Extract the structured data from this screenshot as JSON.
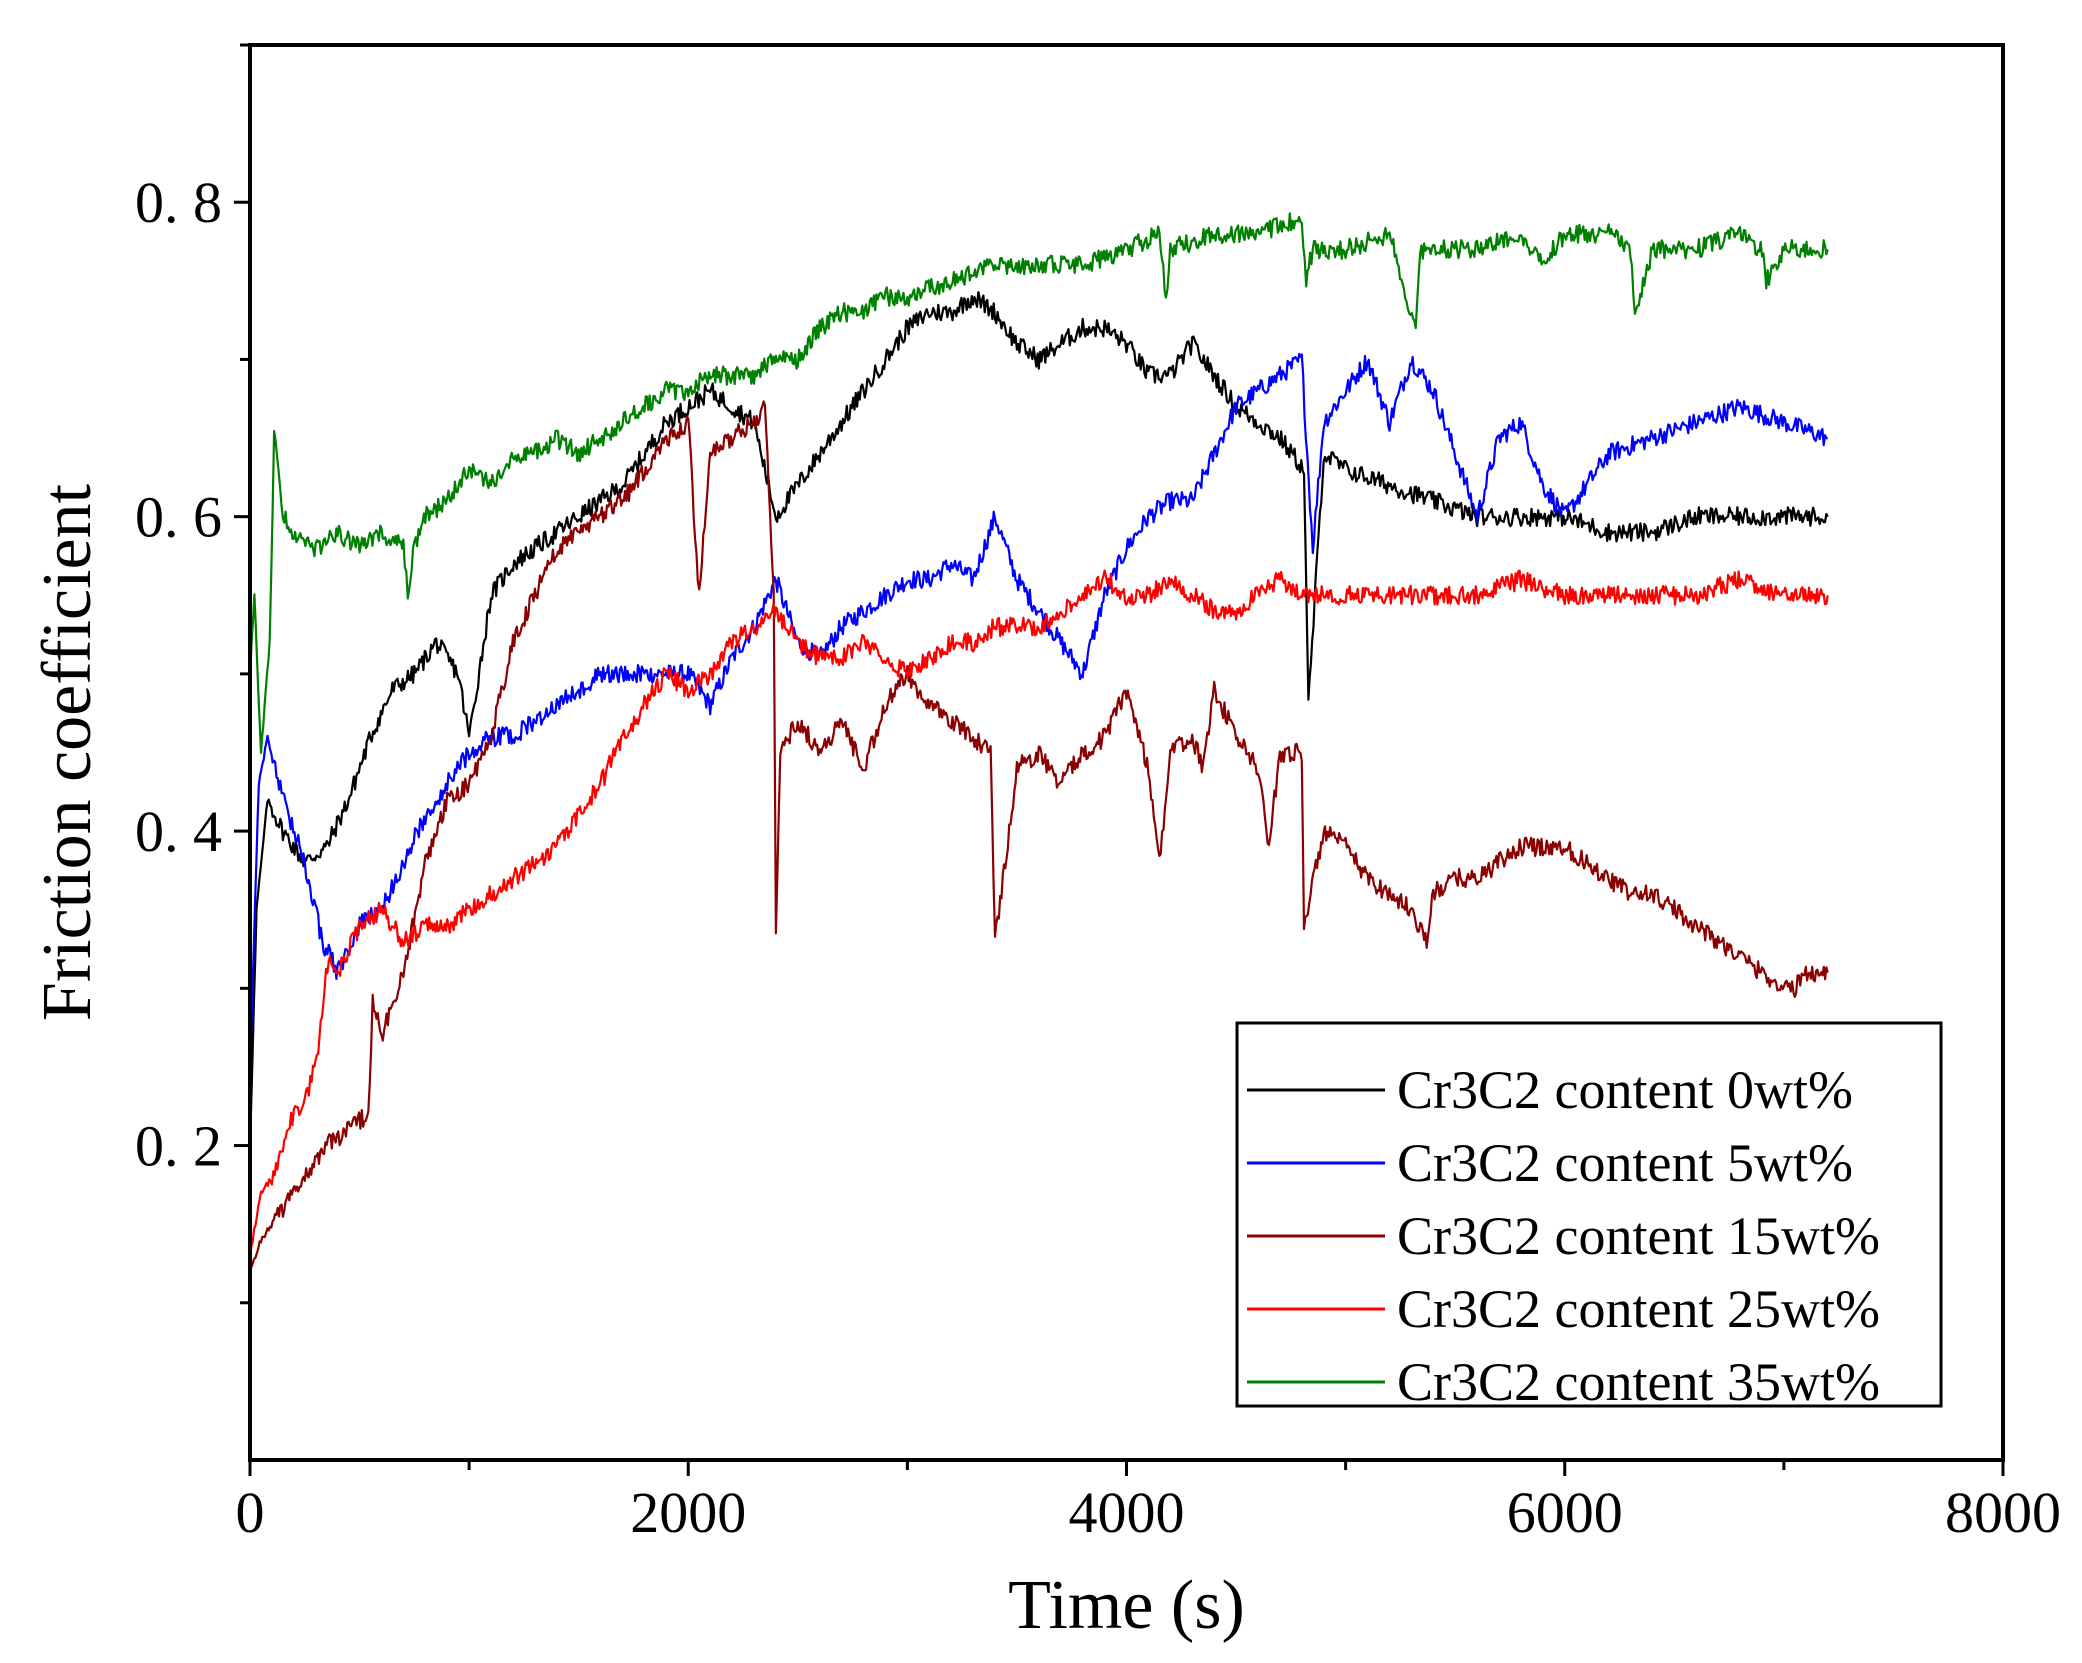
{
  "chart_data": {
    "type": "line",
    "xlabel": "Time (s)",
    "ylabel": "Friction coefficient",
    "xlim": [
      0,
      8000
    ],
    "ylim": [
      0,
      0.9
    ],
    "x_ticks": [
      0,
      2000,
      4000,
      6000,
      8000
    ],
    "x_tick_labels": [
      "0",
      "2000",
      "4000",
      "6000",
      "8000"
    ],
    "y_ticks": [
      0.2,
      0.4,
      0.6,
      0.8
    ],
    "y_tick_labels": [
      "0. 2",
      "0. 4",
      "0. 6",
      "0. 8"
    ],
    "grid": false,
    "legend_position": "bottom-right",
    "series": [
      {
        "name": "Cr3C2 content 0wt%",
        "color": "#000000",
        "x": [
          0,
          30,
          80,
          150,
          250,
          350,
          450,
          550,
          650,
          750,
          850,
          950,
          1000,
          1100,
          1200,
          1300,
          1400,
          1500,
          1600,
          1700,
          1800,
          1900,
          2000,
          2100,
          2200,
          2300,
          2400,
          2500,
          2600,
          2700,
          2800,
          2900,
          3000,
          3100,
          3200,
          3300,
          3400,
          3500,
          3600,
          3700,
          3800,
          3900,
          4000,
          4100,
          4200,
          4300,
          4400,
          4500,
          4600,
          4700,
          4810,
          4830,
          4900,
          5000,
          5200,
          5400,
          5600,
          5800,
          6000,
          6200,
          6400,
          6600,
          6800,
          7000,
          7200
        ],
        "y": [
          0.2,
          0.35,
          0.42,
          0.4,
          0.38,
          0.39,
          0.42,
          0.46,
          0.49,
          0.5,
          0.52,
          0.5,
          0.46,
          0.55,
          0.57,
          0.58,
          0.59,
          0.6,
          0.61,
          0.62,
          0.64,
          0.66,
          0.67,
          0.68,
          0.67,
          0.66,
          0.6,
          0.62,
          0.64,
          0.66,
          0.68,
          0.7,
          0.72,
          0.73,
          0.73,
          0.74,
          0.73,
          0.71,
          0.7,
          0.71,
          0.72,
          0.72,
          0.71,
          0.69,
          0.69,
          0.71,
          0.69,
          0.67,
          0.66,
          0.65,
          0.63,
          0.48,
          0.64,
          0.63,
          0.62,
          0.61,
          0.6,
          0.6,
          0.6,
          0.59,
          0.59,
          0.6,
          0.6,
          0.6,
          0.6
        ]
      },
      {
        "name": "Cr3C2 content 5wt%",
        "color": "#0000ff",
        "x": [
          0,
          40,
          80,
          150,
          250,
          330,
          400,
          500,
          600,
          700,
          800,
          900,
          1000,
          1100,
          1200,
          1300,
          1400,
          1500,
          1600,
          1700,
          1800,
          1900,
          2000,
          2100,
          2200,
          2300,
          2400,
          2500,
          2600,
          2700,
          2800,
          2900,
          3000,
          3100,
          3200,
          3300,
          3400,
          3500,
          3600,
          3700,
          3800,
          3900,
          4000,
          4100,
          4200,
          4300,
          4400,
          4500,
          4600,
          4700,
          4800,
          4850,
          4900,
          5000,
          5100,
          5200,
          5300,
          5400,
          5500,
          5600,
          5700,
          5800,
          5900,
          6000,
          6200,
          6400,
          6600,
          6800,
          7000,
          7200
        ],
        "y": [
          0.25,
          0.43,
          0.46,
          0.42,
          0.38,
          0.33,
          0.31,
          0.34,
          0.35,
          0.38,
          0.41,
          0.43,
          0.45,
          0.46,
          0.46,
          0.47,
          0.48,
          0.49,
          0.5,
          0.5,
          0.5,
          0.5,
          0.5,
          0.48,
          0.51,
          0.53,
          0.56,
          0.52,
          0.51,
          0.53,
          0.54,
          0.55,
          0.56,
          0.56,
          0.57,
          0.56,
          0.6,
          0.56,
          0.54,
          0.52,
          0.5,
          0.55,
          0.58,
          0.6,
          0.61,
          0.61,
          0.64,
          0.67,
          0.68,
          0.69,
          0.7,
          0.58,
          0.66,
          0.68,
          0.7,
          0.66,
          0.7,
          0.68,
          0.64,
          0.6,
          0.65,
          0.66,
          0.62,
          0.6,
          0.64,
          0.65,
          0.66,
          0.67,
          0.66,
          0.65
        ]
      },
      {
        "name": "Cr3C2 content 15wt%",
        "color": "#8b0000",
        "x": [
          0,
          50,
          150,
          250,
          350,
          450,
          540,
          560,
          600,
          700,
          800,
          900,
          1000,
          1100,
          1200,
          1300,
          1400,
          1500,
          1600,
          1700,
          1800,
          1900,
          2000,
          2050,
          2100,
          2200,
          2300,
          2350,
          2390,
          2400,
          2420,
          2500,
          2600,
          2700,
          2800,
          2900,
          3000,
          3100,
          3200,
          3300,
          3380,
          3400,
          3500,
          3600,
          3700,
          3800,
          3900,
          4000,
          4100,
          4150,
          4200,
          4300,
          4350,
          4400,
          4500,
          4600,
          4650,
          4700,
          4800,
          4810,
          4900,
          5000,
          5100,
          5200,
          5300,
          5370,
          5400,
          5500,
          5600,
          5700,
          5800,
          5900,
          6000,
          6100,
          6200,
          6300,
          6400,
          6500,
          6600,
          6700,
          6800,
          6900,
          7000,
          7050,
          7100,
          7200
        ],
        "y": [
          0.12,
          0.14,
          0.16,
          0.18,
          0.2,
          0.21,
          0.22,
          0.29,
          0.27,
          0.31,
          0.38,
          0.42,
          0.43,
          0.46,
          0.52,
          0.55,
          0.58,
          0.59,
          0.6,
          0.61,
          0.63,
          0.65,
          0.66,
          0.55,
          0.64,
          0.65,
          0.66,
          0.67,
          0.55,
          0.34,
          0.45,
          0.47,
          0.45,
          0.47,
          0.44,
          0.48,
          0.5,
          0.48,
          0.47,
          0.46,
          0.45,
          0.33,
          0.44,
          0.45,
          0.43,
          0.45,
          0.46,
          0.49,
          0.44,
          0.38,
          0.45,
          0.46,
          0.44,
          0.49,
          0.46,
          0.44,
          0.39,
          0.45,
          0.45,
          0.34,
          0.4,
          0.39,
          0.37,
          0.36,
          0.35,
          0.33,
          0.36,
          0.37,
          0.37,
          0.38,
          0.39,
          0.39,
          0.39,
          0.38,
          0.37,
          0.36,
          0.36,
          0.35,
          0.34,
          0.33,
          0.32,
          0.31,
          0.3,
          0.3,
          0.31,
          0.31
        ]
      },
      {
        "name": "Cr3C2 content 25wt%",
        "color": "#ff0000",
        "x": [
          0,
          50,
          100,
          150,
          200,
          250,
          300,
          340,
          360,
          400,
          500,
          600,
          700,
          800,
          900,
          1000,
          1100,
          1200,
          1300,
          1400,
          1500,
          1600,
          1700,
          1800,
          1900,
          2000,
          2100,
          2200,
          2300,
          2400,
          2500,
          2600,
          2700,
          2800,
          2900,
          3000,
          3100,
          3200,
          3300,
          3400,
          3500,
          3600,
          3700,
          3800,
          3900,
          4000,
          4100,
          4200,
          4300,
          4400,
          4500,
          4600,
          4700,
          4800,
          5000,
          5200,
          5400,
          5600,
          5800,
          6000,
          6200,
          6400,
          6600,
          6800,
          7000,
          7200
        ],
        "y": [
          0.13,
          0.17,
          0.18,
          0.2,
          0.22,
          0.23,
          0.25,
          0.3,
          0.32,
          0.31,
          0.34,
          0.35,
          0.33,
          0.34,
          0.34,
          0.35,
          0.36,
          0.37,
          0.38,
          0.39,
          0.41,
          0.43,
          0.46,
          0.48,
          0.5,
          0.49,
          0.5,
          0.52,
          0.53,
          0.54,
          0.52,
          0.51,
          0.51,
          0.52,
          0.51,
          0.5,
          0.51,
          0.52,
          0.52,
          0.53,
          0.53,
          0.53,
          0.54,
          0.55,
          0.56,
          0.55,
          0.55,
          0.56,
          0.55,
          0.54,
          0.54,
          0.55,
          0.56,
          0.55,
          0.55,
          0.55,
          0.55,
          0.55,
          0.56,
          0.55,
          0.55,
          0.55,
          0.55,
          0.56,
          0.55,
          0.55
        ]
      },
      {
        "name": "Cr3C2 content 35wt%",
        "color": "#008000",
        "x": [
          0,
          20,
          50,
          90,
          110,
          130,
          150,
          200,
          300,
          400,
          500,
          600,
          700,
          720,
          750,
          800,
          900,
          1000,
          1100,
          1200,
          1300,
          1400,
          1500,
          1600,
          1700,
          1800,
          1900,
          2000,
          2100,
          2200,
          2300,
          2400,
          2500,
          2600,
          2700,
          2800,
          2900,
          3000,
          3200,
          3400,
          3600,
          3800,
          4000,
          4150,
          4180,
          4200,
          4400,
          4600,
          4800,
          4820,
          4850,
          5000,
          5200,
          5320,
          5340,
          5400,
          5600,
          5800,
          5900,
          6000,
          6200,
          6300,
          6320,
          6400,
          6600,
          6800,
          6900,
          6920,
          7000,
          7200
        ],
        "y": [
          0.5,
          0.55,
          0.45,
          0.52,
          0.65,
          0.63,
          0.6,
          0.59,
          0.58,
          0.59,
          0.58,
          0.59,
          0.58,
          0.55,
          0.58,
          0.6,
          0.61,
          0.63,
          0.62,
          0.64,
          0.64,
          0.65,
          0.64,
          0.65,
          0.66,
          0.67,
          0.68,
          0.68,
          0.69,
          0.69,
          0.69,
          0.7,
          0.7,
          0.72,
          0.73,
          0.73,
          0.74,
          0.74,
          0.75,
          0.76,
          0.76,
          0.76,
          0.77,
          0.78,
          0.74,
          0.77,
          0.78,
          0.78,
          0.79,
          0.75,
          0.77,
          0.77,
          0.78,
          0.72,
          0.77,
          0.77,
          0.77,
          0.78,
          0.76,
          0.78,
          0.78,
          0.77,
          0.73,
          0.77,
          0.77,
          0.78,
          0.77,
          0.75,
          0.77,
          0.77
        ]
      }
    ]
  }
}
